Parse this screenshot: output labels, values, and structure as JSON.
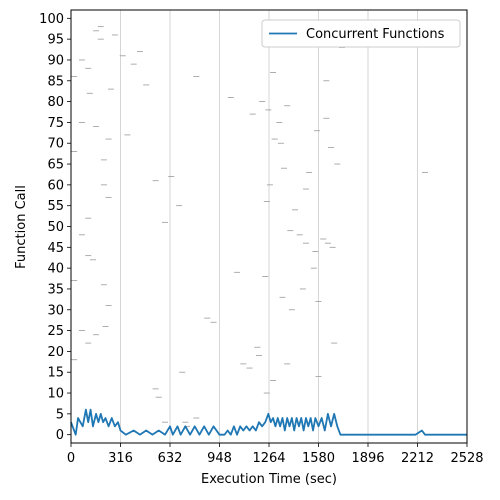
{
  "chart_data": {
    "type": "line",
    "xlabel": "Execution Time (sec)",
    "ylabel": "Function Call",
    "xlim": [
      0,
      2528
    ],
    "ylim": [
      -2,
      102
    ],
    "xticks": [
      0,
      316,
      632,
      948,
      1264,
      1580,
      1896,
      2212,
      2528
    ],
    "yticks": [
      0,
      5,
      10,
      15,
      20,
      25,
      30,
      35,
      40,
      45,
      50,
      55,
      60,
      65,
      70,
      75,
      80,
      85,
      90,
      95,
      100
    ],
    "grid": "vertical lines at x ticks",
    "legend_position": "top-right",
    "colors": {
      "series": "#1f77b4",
      "markers": "#999999",
      "grid": "#cccccc",
      "axis": "#000000"
    },
    "series": [
      {
        "name": "Concurrent Functions",
        "x": [
          0,
          30,
          45,
          60,
          75,
          95,
          110,
          125,
          140,
          160,
          175,
          190,
          205,
          220,
          240,
          260,
          280,
          300,
          316,
          350,
          400,
          440,
          480,
          520,
          560,
          600,
          632,
          650,
          680,
          700,
          730,
          760,
          790,
          820,
          850,
          880,
          910,
          948,
          980,
          1000,
          1020,
          1040,
          1060,
          1080,
          1100,
          1120,
          1140,
          1160,
          1180,
          1200,
          1220,
          1240,
          1260,
          1275,
          1290,
          1305,
          1320,
          1335,
          1350,
          1365,
          1380,
          1395,
          1410,
          1425,
          1440,
          1455,
          1470,
          1485,
          1500,
          1515,
          1530,
          1545,
          1560,
          1580,
          1600,
          1620,
          1640,
          1660,
          1680,
          1700,
          1720,
          1740,
          1760,
          1800,
          2000,
          2200,
          2240,
          2260,
          2300,
          2528
        ],
        "y": [
          3,
          0,
          4,
          3,
          2,
          6,
          3,
          6,
          2,
          5,
          3,
          5,
          3,
          4,
          2,
          4,
          2,
          3,
          1,
          0,
          1,
          0,
          1,
          0,
          1,
          0,
          2,
          0,
          2,
          0,
          2,
          0,
          2,
          0,
          2,
          0,
          2,
          0,
          0,
          1,
          0,
          2,
          0,
          2,
          1,
          2,
          1,
          2,
          1,
          3,
          2,
          3,
          5,
          3,
          4,
          2,
          4,
          2,
          4,
          1,
          4,
          2,
          4,
          1,
          4,
          2,
          4,
          1,
          4,
          2,
          4,
          1,
          4,
          2,
          4,
          1,
          5,
          2,
          5,
          2,
          0,
          0,
          0,
          0,
          0,
          0,
          1,
          0,
          0,
          0
        ]
      }
    ],
    "call_markers": [
      {
        "x": 20,
        "y": 86
      },
      {
        "x": 20,
        "y": 68
      },
      {
        "x": 20,
        "y": 37
      },
      {
        "x": 20,
        "y": 18
      },
      {
        "x": 70,
        "y": 48
      },
      {
        "x": 70,
        "y": 90
      },
      {
        "x": 70,
        "y": 25
      },
      {
        "x": 70,
        "y": 75
      },
      {
        "x": 110,
        "y": 88
      },
      {
        "x": 110,
        "y": 43
      },
      {
        "x": 110,
        "y": 22
      },
      {
        "x": 110,
        "y": 52
      },
      {
        "x": 120,
        "y": 82
      },
      {
        "x": 140,
        "y": 42
      },
      {
        "x": 160,
        "y": 97
      },
      {
        "x": 160,
        "y": 74
      },
      {
        "x": 160,
        "y": 24
      },
      {
        "x": 190,
        "y": 98
      },
      {
        "x": 190,
        "y": 95
      },
      {
        "x": 210,
        "y": 66
      },
      {
        "x": 210,
        "y": 60
      },
      {
        "x": 210,
        "y": 36
      },
      {
        "x": 220,
        "y": 26
      },
      {
        "x": 240,
        "y": 57
      },
      {
        "x": 240,
        "y": 31
      },
      {
        "x": 240,
        "y": 71
      },
      {
        "x": 255,
        "y": 83
      },
      {
        "x": 280,
        "y": 96
      },
      {
        "x": 330,
        "y": 91
      },
      {
        "x": 360,
        "y": 72
      },
      {
        "x": 400,
        "y": 89
      },
      {
        "x": 440,
        "y": 92
      },
      {
        "x": 480,
        "y": 84
      },
      {
        "x": 540,
        "y": 61
      },
      {
        "x": 600,
        "y": 51
      },
      {
        "x": 640,
        "y": 62
      },
      {
        "x": 690,
        "y": 55
      },
      {
        "x": 710,
        "y": 15
      },
      {
        "x": 730,
        "y": 3
      },
      {
        "x": 540,
        "y": 11
      },
      {
        "x": 560,
        "y": 9
      },
      {
        "x": 600,
        "y": 3
      },
      {
        "x": 740,
        "y": 2
      },
      {
        "x": 800,
        "y": 4
      },
      {
        "x": 800,
        "y": 86
      },
      {
        "x": 870,
        "y": 28
      },
      {
        "x": 910,
        "y": 27
      },
      {
        "x": 1020,
        "y": 81
      },
      {
        "x": 1060,
        "y": 39
      },
      {
        "x": 1100,
        "y": 17
      },
      {
        "x": 1140,
        "y": 16
      },
      {
        "x": 1160,
        "y": 77
      },
      {
        "x": 1190,
        "y": 21
      },
      {
        "x": 1200,
        "y": 19
      },
      {
        "x": 1220,
        "y": 80
      },
      {
        "x": 1240,
        "y": 38
      },
      {
        "x": 1250,
        "y": 56
      },
      {
        "x": 1260,
        "y": 78
      },
      {
        "x": 1270,
        "y": 60
      },
      {
        "x": 1290,
        "y": 13
      },
      {
        "x": 1300,
        "y": 71
      },
      {
        "x": 1330,
        "y": 75
      },
      {
        "x": 1340,
        "y": 70
      },
      {
        "x": 1350,
        "y": 33
      },
      {
        "x": 1360,
        "y": 64
      },
      {
        "x": 1380,
        "y": 79
      },
      {
        "x": 1400,
        "y": 49
      },
      {
        "x": 1410,
        "y": 30
      },
      {
        "x": 1430,
        "y": 54
      },
      {
        "x": 1460,
        "y": 48
      },
      {
        "x": 1480,
        "y": 35
      },
      {
        "x": 1500,
        "y": 46
      },
      {
        "x": 1500,
        "y": 59
      },
      {
        "x": 1520,
        "y": 63
      },
      {
        "x": 1550,
        "y": 40
      },
      {
        "x": 1560,
        "y": 44
      },
      {
        "x": 1570,
        "y": 73
      },
      {
        "x": 1580,
        "y": 14
      },
      {
        "x": 1580,
        "y": 32
      },
      {
        "x": 1610,
        "y": 47
      },
      {
        "x": 1630,
        "y": 85
      },
      {
        "x": 1630,
        "y": 76
      },
      {
        "x": 1640,
        "y": 46
      },
      {
        "x": 1660,
        "y": 69
      },
      {
        "x": 1670,
        "y": 45
      },
      {
        "x": 1680,
        "y": 22
      },
      {
        "x": 1700,
        "y": 65
      },
      {
        "x": 1730,
        "y": 93
      },
      {
        "x": 1400,
        "y": 94
      },
      {
        "x": 1540,
        "y": 94
      },
      {
        "x": 1290,
        "y": 87
      },
      {
        "x": 1380,
        "y": 17
      },
      {
        "x": 2260,
        "y": 63
      },
      {
        "x": 1250,
        "y": 10
      }
    ]
  }
}
